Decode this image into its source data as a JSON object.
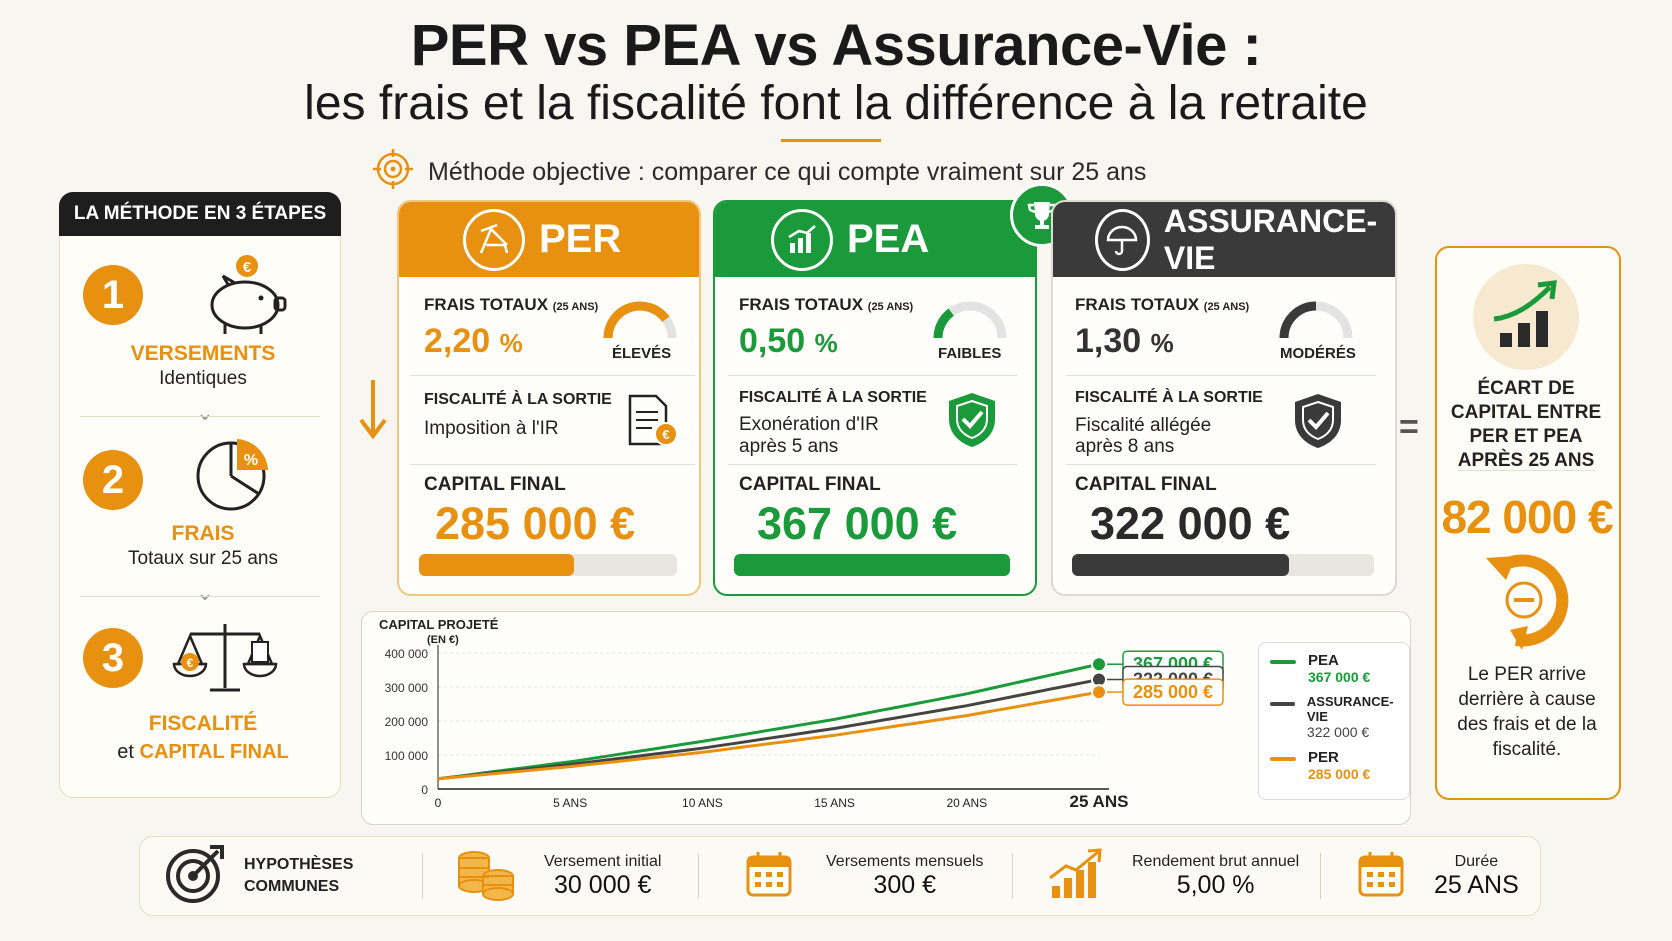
{
  "header": {
    "title": "PER vs PEA vs Assurance-Vie :",
    "subtitle": "les frais et la fiscalité font la différence à la retraite",
    "method": "Méthode objective : comparer ce qui compte vraiment sur 25 ans"
  },
  "steps": {
    "heading": "LA MÉTHODE EN 3 ÉTAPES",
    "items": [
      {
        "num": "1",
        "title": "VERSEMENTS",
        "sub": "Identiques"
      },
      {
        "num": "2",
        "title": "FRAIS",
        "sub": "Totaux sur 25 ans"
      },
      {
        "num": "3",
        "title": "FISCALITÉ",
        "sub_prefix": "et",
        "sub_em": "CAPITAL FINAL"
      }
    ]
  },
  "cards": [
    {
      "name": "PER",
      "color": "#e8900f",
      "fees_label": "FRAIS TOTAUX",
      "fees_period": "(25 ANS)",
      "fees_value": "2,20",
      "fees_unit": "%",
      "fees_level": "ÉLEVÉS",
      "gauge_fraction": 0.8,
      "tax_label": "FISCALITÉ À LA SORTIE",
      "tax_value_1": "Imposition à l'IR",
      "tax_value_2": "",
      "capital_label": "CAPITAL FINAL",
      "capital_value": "285 000 €",
      "capital_fill": 0.6
    },
    {
      "name": "PEA",
      "color": "#1a9a3a",
      "fees_label": "FRAIS TOTAUX",
      "fees_period": "(25 ANS)",
      "fees_value": "0,50",
      "fees_unit": "%",
      "fees_level": "FAIBLES",
      "gauge_fraction": 0.3,
      "tax_label": "FISCALITÉ À LA SORTIE",
      "tax_value_1": "Exonération d'IR",
      "tax_value_2": "après 5 ans",
      "capital_label": "CAPITAL FINAL",
      "capital_value": "367 000 €",
      "capital_fill": 1.0
    },
    {
      "name": "ASSURANCE-VIE",
      "color": "#3a3a3a",
      "fees_label": "FRAIS TOTAUX",
      "fees_period": "(25 ANS)",
      "fees_value": "1,30",
      "fees_unit": "%",
      "fees_level": "MODÉRÉS",
      "gauge_fraction": 0.5,
      "tax_label": "FISCALITÉ À LA SORTIE",
      "tax_value_1": "Fiscalité allégée",
      "tax_value_2": "après 8 ans",
      "capital_label": "CAPITAL FINAL",
      "capital_value": "322 000 €",
      "capital_fill": 0.72
    }
  ],
  "gap": {
    "equals": "=",
    "label": "ÉCART DE CAPITAL ENTRE PER ET PEA APRÈS 25 ANS",
    "value": "82 000 €",
    "note": "Le PER arrive derrière à cause des frais et de la fiscalité."
  },
  "chart_data": {
    "type": "line",
    "title": "CAPITAL PROJETÉ",
    "subtitle": "(EN €)",
    "x": [
      0,
      5,
      10,
      15,
      20,
      25
    ],
    "x_tick_labels": [
      "0",
      "5 ANS",
      "10 ANS",
      "15 ANS",
      "20 ANS",
      "25 ANS"
    ],
    "y_tick_labels": [
      "0",
      "100 000",
      "200 000",
      "300 000",
      "400 000"
    ],
    "ylim": [
      0,
      400000
    ],
    "series": [
      {
        "name": "PEA",
        "color": "#1a9a3a",
        "values": [
          30000,
          80000,
          140000,
          205000,
          280000,
          367000
        ],
        "end_label": "367 000 €"
      },
      {
        "name": "ASSURANCE-VIE",
        "color": "#444444",
        "values": [
          30000,
          72000,
          120000,
          178000,
          245000,
          322000
        ],
        "end_label": "322 000 €"
      },
      {
        "name": "PER",
        "color": "#e8900f",
        "values": [
          30000,
          66000,
          108000,
          158000,
          216000,
          285000
        ],
        "end_label": "285 000 €"
      }
    ]
  },
  "legend": [
    {
      "name": "PEA",
      "value": "367 000 €",
      "color": "#1a9a3a"
    },
    {
      "name": "ASSURANCE-VIE",
      "value": "322 000 €",
      "color": "#444444"
    },
    {
      "name": "PER",
      "value": "285 000 €",
      "color": "#e8900f"
    }
  ],
  "hypotheses": {
    "title_1": "HYPOTHÈSES",
    "title_2": "COMMUNES",
    "items": [
      {
        "label": "Versement initial",
        "value": "30 000 €",
        "icon": "coins-icon"
      },
      {
        "label": "Versements mensuels",
        "value": "300 €",
        "icon": "calendar-icon"
      },
      {
        "label": "Rendement brut annuel",
        "value": "5,00 %",
        "icon": "growth-chart-icon"
      },
      {
        "label": "Durée",
        "value": "25 ANS",
        "icon": "calendar-icon"
      }
    ]
  }
}
